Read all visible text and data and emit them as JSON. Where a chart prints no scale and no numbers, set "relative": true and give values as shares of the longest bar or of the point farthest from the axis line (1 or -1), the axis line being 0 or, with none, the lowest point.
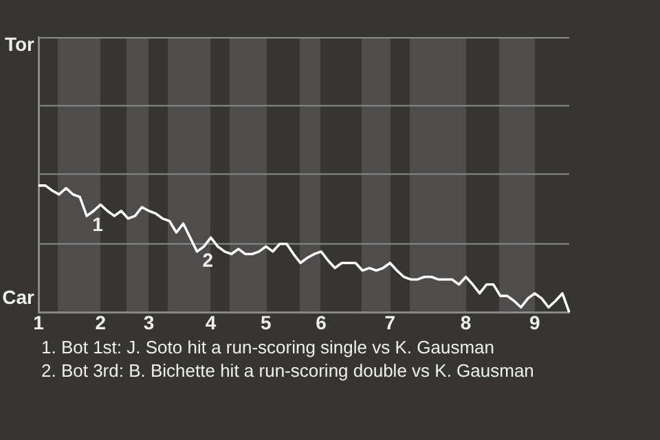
{
  "chart_data": {
    "type": "line",
    "relative": true,
    "categories": [
      "1",
      null,
      null,
      null,
      null,
      null,
      null,
      null,
      null,
      "2",
      null,
      null,
      null,
      null,
      null,
      null,
      "3",
      null,
      null,
      null,
      null,
      null,
      null,
      null,
      null,
      "4",
      null,
      null,
      null,
      null,
      null,
      null,
      null,
      "5",
      null,
      null,
      null,
      null,
      null,
      null,
      null,
      "6",
      null,
      null,
      null,
      null,
      null,
      null,
      null,
      null,
      null,
      "7",
      null,
      null,
      null,
      null,
      null,
      null,
      null,
      null,
      null,
      null,
      "8",
      null,
      null,
      null,
      null,
      null,
      null,
      null,
      null,
      null,
      "9",
      null,
      null,
      null,
      null,
      null
    ],
    "series": [
      {
        "color": "#ffffff",
        "values": [
          1,
          1,
          0.96,
          0.93,
          0.98,
          0.93,
          0.91,
          0.76,
          0.8,
          0.85,
          0.8,
          0.76,
          0.8,
          0.74,
          0.76,
          0.83,
          0.8,
          0.78,
          0.74,
          0.72,
          0.63,
          0.7,
          0.59,
          0.48,
          0.52,
          0.59,
          0.52,
          0.48,
          0.46,
          0.5,
          0.46,
          0.46,
          0.48,
          0.52,
          0.48,
          0.54,
          0.54,
          0.46,
          0.39,
          0.43,
          0.46,
          0.48,
          0.41,
          0.35,
          0.39,
          0.39,
          0.39,
          0.33,
          0.35,
          0.33,
          0.35,
          0.39,
          0.33,
          0.28,
          0.26,
          0.26,
          0.28,
          0.28,
          0.26,
          0.26,
          0.26,
          0.22,
          0.28,
          0.22,
          0.15,
          0.22,
          0.22,
          0.13,
          0.13,
          0.09,
          0.04,
          0.11,
          0.15,
          0.11,
          0.04,
          0.09,
          0.15,
          0
        ]
      }
    ],
    "ref_lines": [
      {
        "axis": "y",
        "value": 0.54,
        "color": "#8a8a8a"
      },
      {
        "axis": "y",
        "value": 1.09,
        "color": "#8a8a8a"
      },
      {
        "axis": "y",
        "value": 1.63,
        "color": "#8a8a8a"
      }
    ],
    "marker": "none",
    "line_style": "solid",
    "annotations": [
      "Tor",
      "Car",
      "1",
      "2",
      "1. Bot 1st: J. Soto hit a run-scoring single vs K. Gausman",
      "2. Bot 3rd: B. Bichette hit a run-scoring double vs K. Gausman"
    ]
  }
}
